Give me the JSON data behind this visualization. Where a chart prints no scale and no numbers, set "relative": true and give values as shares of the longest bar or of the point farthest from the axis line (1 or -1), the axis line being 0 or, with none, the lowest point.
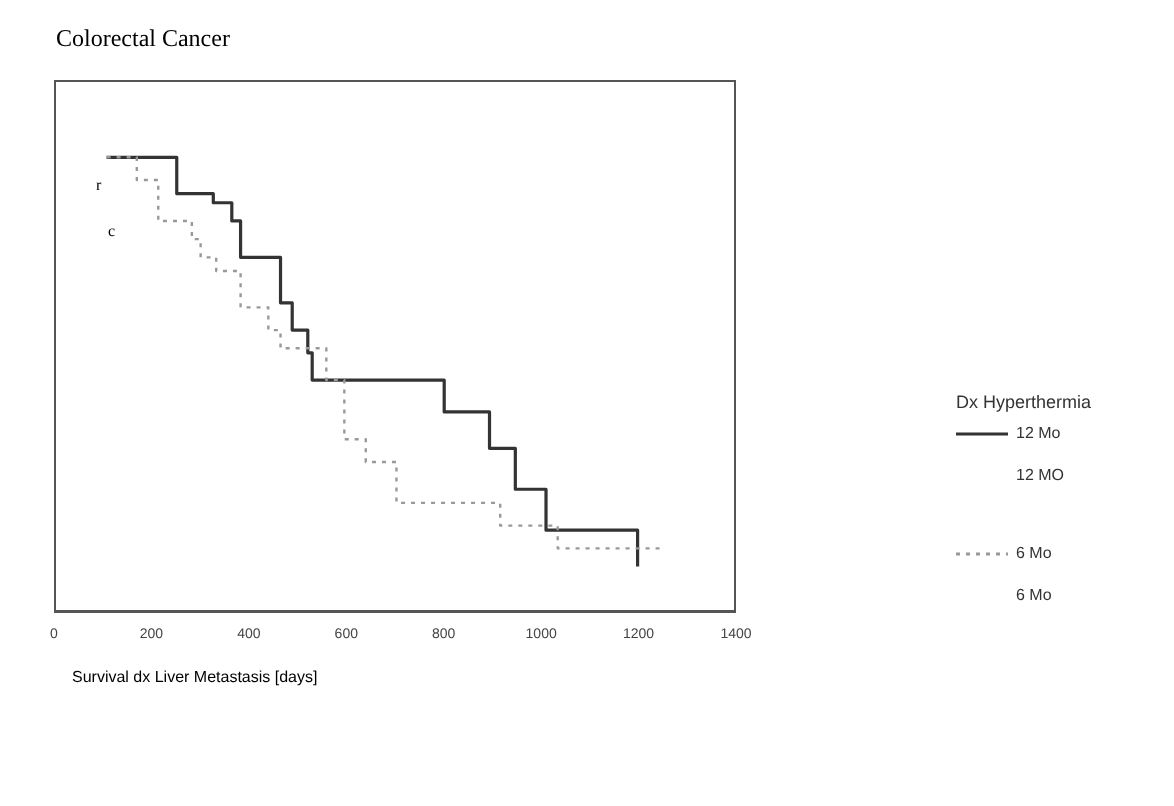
{
  "chart_data": {
    "type": "step",
    "title": "Colorectal Cancer",
    "xlabel": "Survival dx Liver Metastasis [days]",
    "legend_title": "Dx Hyperthermia",
    "relative": true,
    "xlim": [
      0,
      1400
    ],
    "xticks": [
      0,
      200,
      400,
      600,
      800,
      1000,
      1200,
      1400
    ],
    "grid": false,
    "legend": "right",
    "marker": "none",
    "annotations": [
      "r",
      "c",
      "12 MO",
      "6 Mo"
    ],
    "series": [
      {
        "name": "12 Mo",
        "color": "#333333",
        "line_style": "solid",
        "x": [
          108,
          252,
          327,
          365,
          383,
          465,
          489,
          521,
          530,
          801,
          894,
          947,
          1010,
          1198
        ],
        "values": [
          1.0,
          0.92,
          0.9,
          0.86,
          0.78,
          0.68,
          0.62,
          0.57,
          0.51,
          0.44,
          0.36,
          0.27,
          0.18,
          0.1
        ]
      },
      {
        "name": "6 Mo",
        "color": "#999999",
        "line_style": "dotted",
        "x": [
          108,
          170,
          214,
          283,
          301,
          333,
          383,
          440,
          465,
          559,
          596,
          640,
          703,
          916,
          1034,
          1248
        ],
        "values": [
          1.0,
          0.95,
          0.86,
          0.82,
          0.78,
          0.75,
          0.67,
          0.62,
          0.58,
          0.51,
          0.38,
          0.33,
          0.24,
          0.19,
          0.14,
          0.14
        ]
      }
    ]
  }
}
